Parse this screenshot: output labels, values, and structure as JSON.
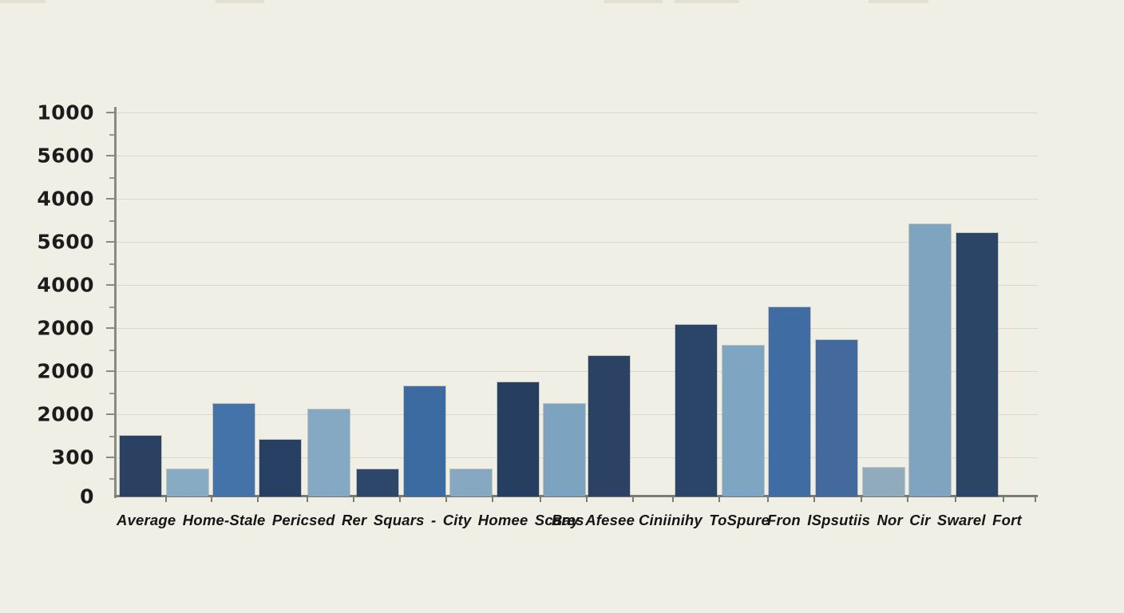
{
  "chart_data": {
    "type": "bar",
    "title": "",
    "xlabel": "Average Home-Stale Pericsed Rer Squars - City Homee Scares Bay Afesee Ciniinihy ToSpure Fron ISpsutiis Nor Cir Swarel Fort",
    "ylabel": "",
    "ylim": [
      0,
      1078
    ],
    "grid": true,
    "legend": false,
    "background_color": "#f0efe6",
    "gridline_color": "#d9d8cb",
    "axis_color": "#8a8a82",
    "text_color": "#1c1c1c",
    "y_tick_labels_top_to_bottom": [
      "1000",
      "5600",
      "4000",
      "5600",
      "4000",
      "2000",
      "2000",
      "2000",
      "300",
      "0"
    ],
    "bars": [
      {
        "value": 158,
        "color": "#2a4162",
        "x": 150
      },
      {
        "value": 71,
        "color": "#88abc4",
        "x": 209
      },
      {
        "value": 241,
        "color": "#4473aa",
        "x": 267
      },
      {
        "value": 148,
        "color": "#273f62",
        "x": 325
      },
      {
        "value": 227,
        "color": "#85a9c3",
        "x": 386
      },
      {
        "value": 71,
        "color": "#2c4769",
        "x": 447
      },
      {
        "value": 287,
        "color": "#3c6ba1",
        "x": 506
      },
      {
        "value": 71,
        "color": "#86a9c1",
        "x": 564
      },
      {
        "value": 297,
        "color": "#263e60",
        "x": 623
      },
      {
        "value": 241,
        "color": "#7ca4c0",
        "x": 681
      },
      {
        "value": 366,
        "color": "#2c4264",
        "x": 737
      },
      {
        "value": 447,
        "color": "#2b4568",
        "x": 846
      },
      {
        "value": 393,
        "color": "#7ea5c1",
        "x": 905
      },
      {
        "value": 493,
        "color": "#3f6ca2",
        "x": 963
      },
      {
        "value": 408,
        "color": "#44699c",
        "x": 1022
      },
      {
        "value": 75,
        "color": "#8fabbc",
        "x": 1081
      },
      {
        "value": 709,
        "color": "#7ea4c0",
        "x": 1139
      },
      {
        "value": 686,
        "color": "#2b4566",
        "x": 1198
      }
    ],
    "caption_segments": [
      {
        "text": "Average Home-Stale Pericsed Rer Squars - City Homee Scares",
        "x": 146
      },
      {
        "text": "Bay Afesee",
        "x": 691
      },
      {
        "text": "Ciniinihy ToSpure",
        "x": 800
      },
      {
        "text": "Fron ISpsutiis Nor Cir Swarel Fort",
        "x": 961
      }
    ]
  }
}
